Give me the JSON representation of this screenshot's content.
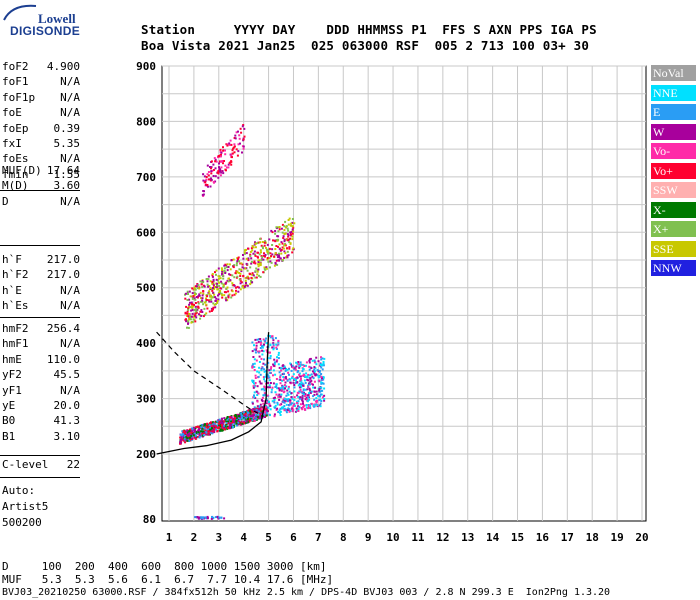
{
  "logo": {
    "line1": "Lowell",
    "line2": "DIGISONDE"
  },
  "header": {
    "labels_line": "Station     YYYY DAY    DDD HHMMSS P1  FFS S AXN PPS IGA PS",
    "values_line": "Boa Vista 2021 Jan25  025 063000 RSF  005 2 713 100 03+ 30"
  },
  "params_group1": [
    {
      "name": "foF2",
      "value": "4.900"
    },
    {
      "name": "foF1",
      "value": "N/A"
    },
    {
      "name": "foF1p",
      "value": "N/A"
    },
    {
      "name": "foE",
      "value": "N/A"
    },
    {
      "name": "foEp",
      "value": "0.39"
    },
    {
      "name": "fxI",
      "value": "5.35"
    },
    {
      "name": "foEs",
      "value": "N/A"
    },
    {
      "name": "fmin",
      "value": "1.55"
    }
  ],
  "params_group2": [
    {
      "name": "MUF(D)",
      "value": "17.64"
    },
    {
      "name": "M(D)",
      "value": "3.60"
    },
    {
      "name": "D",
      "value": "N/A"
    }
  ],
  "params_group3": [
    {
      "name": "h`F",
      "value": "217.0"
    },
    {
      "name": "h`F2",
      "value": "217.0"
    },
    {
      "name": "h`E",
      "value": "N/A"
    },
    {
      "name": "h`Es",
      "value": "N/A"
    }
  ],
  "params_group4": [
    {
      "name": "hmF2",
      "value": "256.4"
    },
    {
      "name": "hmF1",
      "value": "N/A"
    },
    {
      "name": "hmE",
      "value": "110.0"
    },
    {
      "name": "yF2",
      "value": "45.5"
    },
    {
      "name": "yF1",
      "value": "N/A"
    },
    {
      "name": "yE",
      "value": "20.0"
    },
    {
      "name": "B0",
      "value": "41.3"
    },
    {
      "name": "B1",
      "value": "3.10"
    }
  ],
  "params_group5": [
    {
      "name": "C-level",
      "value": "22"
    }
  ],
  "autoscale": {
    "line1": "Auto:",
    "line2": "Artist5",
    "line3": "500200"
  },
  "legend": [
    {
      "label": "NoVal",
      "color": "#a0a0a0"
    },
    {
      "label": "NNE",
      "color": "#00e0ff"
    },
    {
      "label": "E",
      "color": "#2a9df4"
    },
    {
      "label": "W",
      "color": "#a8009c"
    },
    {
      "label": "Vo-",
      "color": "#ff2aa8"
    },
    {
      "label": "Vo+",
      "color": "#ff0030"
    },
    {
      "label": "SSW",
      "color": "#ffb0b0"
    },
    {
      "label": "X-",
      "color": "#007a00"
    },
    {
      "label": "X+",
      "color": "#80c050"
    },
    {
      "label": "SSE",
      "color": "#c8c800"
    },
    {
      "label": "NNW",
      "color": "#2020e0"
    }
  ],
  "bottom": {
    "d_line": "D     100  200  400  600  800 1000 1500 3000 [km]",
    "muf_line": "MUF   5.3  5.3  5.6  6.1  6.7  7.7 10.4 17.6 [MHz]",
    "info_line": "BVJ03_20210250 63000.RSF / 384fx512h 50 kHz 2.5 km / DPS-4D BVJ03 003 / 2.8 N 299.3 E  Ion2Png 1.3.20"
  },
  "chart_data": {
    "type": "scatter",
    "title": "",
    "xlabel": "",
    "ylabel": "",
    "xlim": [
      0.5,
      20
    ],
    "x_ticks": [
      1,
      2,
      3,
      4,
      5,
      6,
      7,
      8,
      9,
      10,
      11,
      12,
      13,
      14,
      15,
      16,
      17,
      18,
      19,
      20
    ],
    "ylim": [
      80,
      900
    ],
    "y_ticks": [
      80,
      200,
      300,
      400,
      500,
      600,
      700,
      800,
      900
    ],
    "y_grid": [
      200,
      250,
      300,
      350,
      400,
      450,
      500,
      550,
      600,
      650,
      700,
      750,
      800,
      850,
      900
    ],
    "grid": true,
    "x_unit": "MHz",
    "y_unit": "km",
    "clusters": [
      {
        "name": "o-trace F2",
        "freq_range": [
          1.4,
          4.9
        ],
        "height_range": [
          215,
          300
        ],
        "colors": [
          "#ff0030",
          "#a8009c",
          "#007a00",
          "#2a9df4"
        ]
      },
      {
        "name": "x-trace F2",
        "freq_range": [
          4.3,
          7.2
        ],
        "height_range": [
          255,
          440
        ],
        "colors": [
          "#a8009c",
          "#ff2aa8",
          "#2a9df4",
          "#00e0ff"
        ]
      },
      {
        "name": "2nd hop",
        "freq_range": [
          1.6,
          6.0
        ],
        "height_range": [
          440,
          640
        ],
        "colors": [
          "#a8009c",
          "#ff0030",
          "#80c050",
          "#c8c800"
        ]
      },
      {
        "name": "3rd hop",
        "freq_range": [
          2.3,
          4.0
        ],
        "height_range": [
          690,
          810
        ],
        "colors": [
          "#ff0030",
          "#a8009c",
          "#ff2aa8"
        ]
      },
      {
        "name": "Es low",
        "freq_range": [
          2.0,
          3.2
        ],
        "height_range": [
          82,
          86
        ],
        "colors": [
          "#a8009c",
          "#2a9df4"
        ]
      }
    ],
    "profile_curve": [
      [
        0.5,
        200
      ],
      [
        1.6,
        210
      ],
      [
        2.5,
        215
      ],
      [
        3.5,
        225
      ],
      [
        4.2,
        240
      ],
      [
        4.7,
        258
      ],
      [
        4.9,
        300
      ],
      [
        4.95,
        370
      ],
      [
        5.0,
        420
      ]
    ],
    "profile_dashed": [
      [
        0.5,
        420
      ],
      [
        1.2,
        385
      ],
      [
        2,
        350
      ],
      [
        3,
        320
      ],
      [
        3.8,
        295
      ],
      [
        4.3,
        280
      ],
      [
        4.8,
        268
      ]
    ]
  }
}
